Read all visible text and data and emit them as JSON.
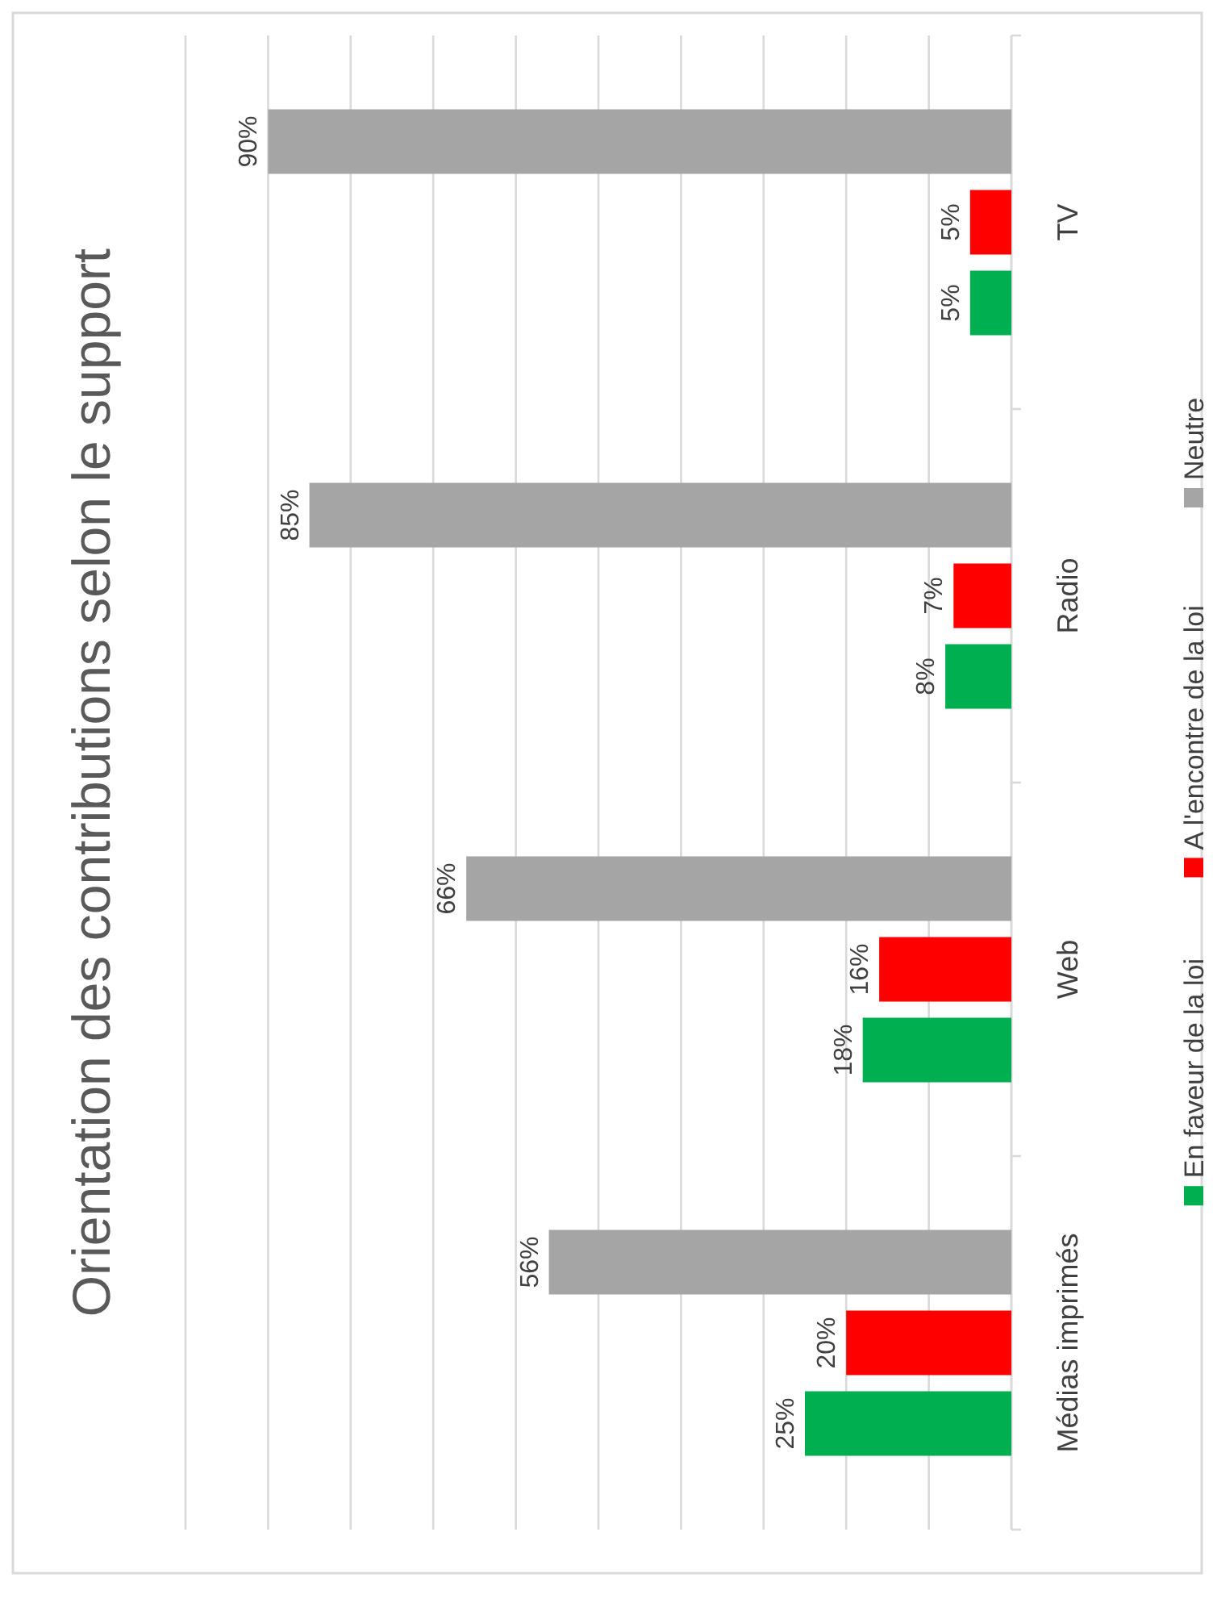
{
  "chart_data": {
    "type": "bar",
    "orientation": "horizontal",
    "title": "Orientation des contributions selon le support",
    "categories": [
      "TV",
      "Radio",
      "Web",
      "Médias imprimés"
    ],
    "series": [
      {
        "name": "En faveur de la loi",
        "color": "#00b050",
        "values": [
          5,
          8,
          18,
          25
        ],
        "value_labels": [
          "5%",
          "8%",
          "18%",
          "25%"
        ]
      },
      {
        "name": "A l'encontre de la loi",
        "color": "#ff0000",
        "values": [
          5,
          7,
          16,
          20
        ],
        "value_labels": [
          "5%",
          "7%",
          "16%",
          "20%"
        ]
      },
      {
        "name": "Neutre",
        "color": "#a5a5a5",
        "values": [
          90,
          85,
          66,
          56
        ],
        "value_labels": [
          "90%",
          "85%",
          "66%",
          "56%"
        ]
      }
    ],
    "xlim": [
      100,
      0
    ],
    "xticks": [
      {
        "value": 100,
        "label": null
      },
      {
        "value": 90,
        "label": null
      },
      {
        "value": 80,
        "label": null
      },
      {
        "value": 70,
        "label": null
      },
      {
        "value": 60,
        "label": null
      },
      {
        "value": 50,
        "label": null
      },
      {
        "value": 40,
        "label": null
      },
      {
        "value": 30,
        "label": null
      },
      {
        "value": 20,
        "label": null
      },
      {
        "value": 10,
        "label": null
      },
      {
        "value": 0,
        "label": null
      }
    ],
    "tick_labels": "y",
    "grid": true,
    "legend": "bottom"
  }
}
